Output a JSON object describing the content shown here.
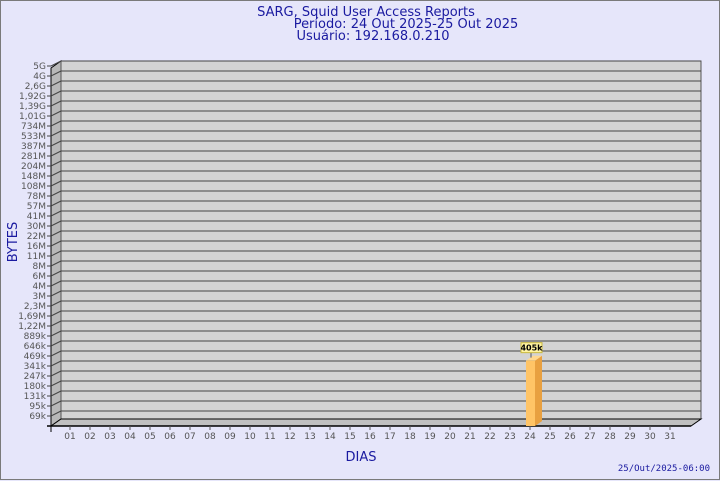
{
  "chart_data": {
    "type": "bar",
    "title": "SARG, Squid User Access Reports",
    "subtitle": [
      "Período: 24 Out 2025-25 Out 2025",
      "Usuário: 192.168.0.210"
    ],
    "xlabel": "DIAS",
    "ylabel": "BYTES",
    "y_scale": "log",
    "y_tick_labels": [
      "5G",
      "4G",
      "2,6G",
      "1,92G",
      "1,39G",
      "1,01G",
      "734M",
      "533M",
      "387M",
      "281M",
      "204M",
      "148M",
      "108M",
      "78M",
      "57M",
      "41M",
      "30M",
      "22M",
      "16M",
      "11M",
      "8M",
      "6M",
      "4M",
      "3M",
      "2,3M",
      "1,69M",
      "1,22M",
      "889k",
      "646k",
      "469k",
      "341k",
      "247k",
      "180k",
      "131k",
      "95k",
      "69k"
    ],
    "categories": [
      "01",
      "02",
      "03",
      "04",
      "05",
      "06",
      "07",
      "08",
      "09",
      "10",
      "11",
      "12",
      "13",
      "14",
      "15",
      "16",
      "17",
      "18",
      "19",
      "20",
      "21",
      "22",
      "23",
      "24",
      "25",
      "26",
      "27",
      "28",
      "29",
      "30",
      "31"
    ],
    "bars": [
      {
        "category": "24",
        "value": 405000,
        "label": "405k"
      }
    ],
    "grid": true,
    "colors": {
      "bar": "#ffc466",
      "bar_side": "#e8a040",
      "wall": "#d3d3d3",
      "text": "#1a1aa0"
    },
    "footer": "25/Out/2025-06:00"
  }
}
